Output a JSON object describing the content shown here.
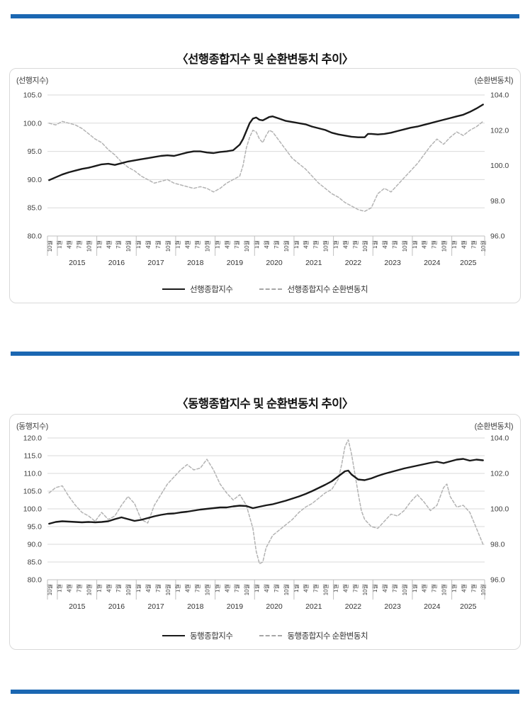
{
  "page": {
    "accent_bar_color": "#1b67b2",
    "grid_color": "#d9d9d9",
    "axis_color": "#bfbfbf",
    "label_color": "#404040"
  },
  "chart_data": [
    {
      "type": "line",
      "title": "〈선행종합지수 및 순환변동치 추이〉",
      "left_axis": {
        "label": "(선행지수)",
        "min": 80,
        "max": 105,
        "tick_labels": [
          "105.0",
          "100.0",
          "95.0",
          "90.0",
          "85.0",
          "80.0"
        ]
      },
      "right_axis": {
        "label": "(순환변동치)",
        "min": 96,
        "max": 104,
        "tick_labels": [
          "104.0",
          "102.0",
          "100.0",
          "98.0",
          "96.0"
        ]
      },
      "x_axis": {
        "months_total": 133,
        "tick_every": 3,
        "tick_label_cycle": [
          "10월",
          "1월",
          "4월",
          "7월"
        ],
        "first_year_boundary_after_month": 2,
        "year_labels": [
          "2015",
          "2016",
          "2017",
          "2018",
          "2019",
          "2020",
          "2021",
          "2022",
          "2023",
          "2024",
          "2025"
        ]
      },
      "legend_position": "bottom",
      "grid": true,
      "series": [
        {
          "name": "선행종합지수",
          "axis": "left",
          "style": "solid",
          "color": "#1a1a1a",
          "months": [
            0,
            2,
            4,
            6,
            8,
            10,
            12,
            14,
            16,
            18,
            20,
            22,
            24,
            26,
            28,
            30,
            32,
            34,
            36,
            38,
            40,
            42,
            44,
            46,
            48,
            50,
            52,
            54,
            56,
            58,
            59,
            60,
            61,
            62,
            63,
            64,
            65,
            66,
            67,
            68,
            70,
            72,
            74,
            76,
            78,
            80,
            82,
            84,
            86,
            88,
            90,
            92,
            94,
            96,
            97,
            98,
            100,
            102,
            104,
            106,
            108,
            110,
            112,
            114,
            116,
            118,
            120,
            122,
            124,
            126,
            128,
            130,
            132
          ],
          "values": [
            89.9,
            90.4,
            90.9,
            91.3,
            91.6,
            91.9,
            92.1,
            92.4,
            92.7,
            92.8,
            92.6,
            92.9,
            93.2,
            93.4,
            93.6,
            93.8,
            94.0,
            94.2,
            94.3,
            94.2,
            94.5,
            94.8,
            95.0,
            95.0,
            94.8,
            94.7,
            94.9,
            95.0,
            95.2,
            96.2,
            97.2,
            98.6,
            100.0,
            100.8,
            101.0,
            100.6,
            100.5,
            100.8,
            101.1,
            101.2,
            100.8,
            100.4,
            100.2,
            100.0,
            99.8,
            99.4,
            99.1,
            98.8,
            98.3,
            98.0,
            97.8,
            97.6,
            97.5,
            97.5,
            98.1,
            98.1,
            98.0,
            98.1,
            98.3,
            98.6,
            98.9,
            99.2,
            99.4,
            99.7,
            100.0,
            100.3,
            100.6,
            100.9,
            101.2,
            101.5,
            102.0,
            102.6,
            103.3
          ]
        },
        {
          "name": "선행종합지수 순환변동치",
          "axis": "right",
          "style": "dashed",
          "color": "#b3b3b3",
          "months": [
            0,
            2,
            4,
            6,
            8,
            10,
            12,
            14,
            16,
            18,
            20,
            22,
            24,
            26,
            28,
            30,
            32,
            34,
            36,
            38,
            40,
            42,
            44,
            46,
            48,
            50,
            52,
            54,
            56,
            58,
            59,
            60,
            61,
            62,
            63,
            64,
            65,
            66,
            67,
            68,
            70,
            72,
            74,
            76,
            78,
            80,
            82,
            84,
            86,
            88,
            90,
            92,
            94,
            96,
            98,
            100,
            102,
            104,
            106,
            108,
            110,
            112,
            114,
            116,
            118,
            120,
            122,
            124,
            126,
            128,
            130,
            132
          ],
          "values": [
            102.4,
            102.3,
            102.5,
            102.4,
            102.3,
            102.1,
            101.8,
            101.5,
            101.3,
            100.9,
            100.6,
            100.2,
            99.9,
            99.7,
            99.4,
            99.2,
            99.0,
            99.1,
            99.2,
            99.0,
            98.9,
            98.8,
            98.7,
            98.8,
            98.7,
            98.5,
            98.7,
            99.0,
            99.2,
            99.4,
            100.0,
            101.0,
            101.6,
            102.0,
            101.9,
            101.5,
            101.3,
            101.7,
            102.0,
            101.9,
            101.4,
            100.9,
            100.4,
            100.1,
            99.8,
            99.4,
            99.0,
            98.7,
            98.4,
            98.2,
            97.9,
            97.7,
            97.5,
            97.4,
            97.6,
            98.4,
            98.7,
            98.5,
            98.9,
            99.3,
            99.7,
            100.1,
            100.6,
            101.1,
            101.5,
            101.2,
            101.6,
            101.9,
            101.7,
            102.0,
            102.2,
            102.5
          ]
        }
      ]
    },
    {
      "type": "line",
      "title": "〈동행종합지수 및 순환변동치 추이〉",
      "left_axis": {
        "label": "(동행지수)",
        "min": 80,
        "max": 120,
        "tick_labels": [
          "120.0",
          "115.0",
          "110.0",
          "105.0",
          "100.0",
          "95.0",
          "90.0",
          "85.0",
          "80.0"
        ]
      },
      "right_axis": {
        "label": "(순환변동치)",
        "min": 96,
        "max": 104,
        "tick_labels": [
          "104.0",
          "102.0",
          "100.0",
          "98.0",
          "96.0"
        ]
      },
      "x_axis": {
        "months_total": 133,
        "tick_every": 3,
        "tick_label_cycle": [
          "10월",
          "1월",
          "4월",
          "7월"
        ],
        "first_year_boundary_after_month": 2,
        "year_labels": [
          "2015",
          "2016",
          "2017",
          "2018",
          "2019",
          "2020",
          "2021",
          "2022",
          "2023",
          "2024",
          "2025"
        ]
      },
      "legend_position": "bottom",
      "grid": true,
      "series": [
        {
          "name": "동행종합지수",
          "axis": "left",
          "style": "solid",
          "color": "#1a1a1a",
          "months": [
            0,
            2,
            4,
            6,
            8,
            10,
            12,
            14,
            16,
            18,
            20,
            22,
            24,
            26,
            28,
            30,
            32,
            34,
            36,
            38,
            40,
            42,
            44,
            46,
            48,
            50,
            52,
            54,
            56,
            58,
            60,
            62,
            64,
            66,
            68,
            70,
            72,
            74,
            76,
            78,
            80,
            82,
            84,
            86,
            88,
            90,
            91,
            92,
            94,
            96,
            98,
            100,
            102,
            104,
            106,
            108,
            110,
            112,
            114,
            116,
            118,
            120,
            122,
            124,
            126,
            128,
            130,
            132
          ],
          "values": [
            95.8,
            96.3,
            96.5,
            96.4,
            96.3,
            96.2,
            96.3,
            96.2,
            96.3,
            96.5,
            97.1,
            97.6,
            97.1,
            96.6,
            96.9,
            97.4,
            97.9,
            98.3,
            98.6,
            98.7,
            99.0,
            99.2,
            99.5,
            99.8,
            100.0,
            100.2,
            100.4,
            100.4,
            100.7,
            100.9,
            100.8,
            100.2,
            100.6,
            101.0,
            101.3,
            101.8,
            102.3,
            102.9,
            103.5,
            104.2,
            105.0,
            105.9,
            106.8,
            107.8,
            109.2,
            110.6,
            110.8,
            109.7,
            108.3,
            108.1,
            108.6,
            109.3,
            109.9,
            110.4,
            110.9,
            111.4,
            111.8,
            112.2,
            112.6,
            113.0,
            113.3,
            112.9,
            113.4,
            113.9,
            114.1,
            113.6,
            113.9,
            113.7
          ]
        },
        {
          "name": "동행종합지수 순환변동치",
          "axis": "right",
          "style": "dashed",
          "color": "#b3b3b3",
          "months": [
            0,
            2,
            4,
            6,
            8,
            10,
            12,
            14,
            16,
            18,
            20,
            22,
            24,
            26,
            28,
            30,
            32,
            34,
            36,
            38,
            40,
            42,
            44,
            46,
            48,
            50,
            52,
            54,
            56,
            58,
            60,
            62,
            63,
            64,
            65,
            66,
            68,
            70,
            72,
            74,
            76,
            78,
            80,
            82,
            84,
            86,
            88,
            89,
            90,
            91,
            92,
            93,
            94,
            95,
            96,
            98,
            100,
            102,
            104,
            106,
            108,
            110,
            112,
            114,
            116,
            118,
            120,
            121,
            122,
            124,
            126,
            128,
            130,
            132
          ],
          "values": [
            100.9,
            101.2,
            101.3,
            100.7,
            100.2,
            99.8,
            99.6,
            99.3,
            99.8,
            99.4,
            99.6,
            100.2,
            100.7,
            100.3,
            99.4,
            99.2,
            100.2,
            100.8,
            101.4,
            101.8,
            102.2,
            102.5,
            102.2,
            102.3,
            102.8,
            102.2,
            101.4,
            100.9,
            100.5,
            100.8,
            100.2,
            98.9,
            97.6,
            96.9,
            97.0,
            97.8,
            98.5,
            98.8,
            99.1,
            99.4,
            99.8,
            100.1,
            100.3,
            100.6,
            100.9,
            101.1,
            101.7,
            102.5,
            103.5,
            103.9,
            103.1,
            102.0,
            100.9,
            99.9,
            99.4,
            99.0,
            98.9,
            99.3,
            99.7,
            99.6,
            99.9,
            100.4,
            100.8,
            100.4,
            99.9,
            100.2,
            101.2,
            101.4,
            100.7,
            100.1,
            100.2,
            99.8,
            98.9,
            98.0
          ]
        }
      ]
    }
  ]
}
